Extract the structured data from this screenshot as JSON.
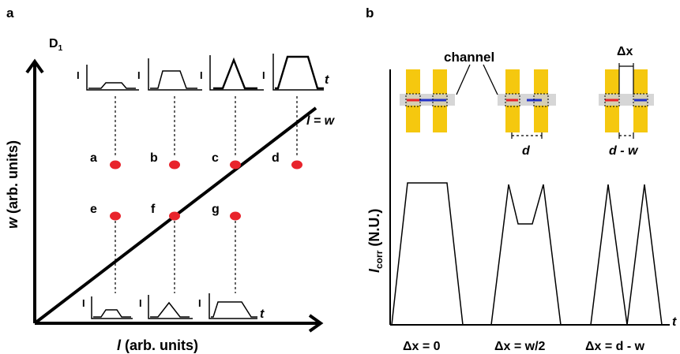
{
  "panel_a": {
    "letter": "a",
    "ylabel_var": "w",
    "ylabel_rest": " (arb. units)",
    "xlabel_var": "l",
    "xlabel_rest": " (arb. units)",
    "detector": "D",
    "detector_sub": "1",
    "line_label": "l = w",
    "insets_top_t": "t",
    "insets_bottom_t": "t",
    "inset_I": "I",
    "points": [
      "a",
      "b",
      "c",
      "d",
      "e",
      "f",
      "g"
    ]
  },
  "panel_b": {
    "letter": "b",
    "channel": "channel",
    "delta_x": "Δx",
    "d": "d",
    "d_minus_w": "d - w",
    "ylabel_I": "I",
    "ylabel_sub": "corr",
    "ylabel_rest": " (N.U.)",
    "t": "t",
    "x_labels": [
      "Δx = 0",
      "Δx = w/2",
      "Δx = d - w"
    ]
  }
}
